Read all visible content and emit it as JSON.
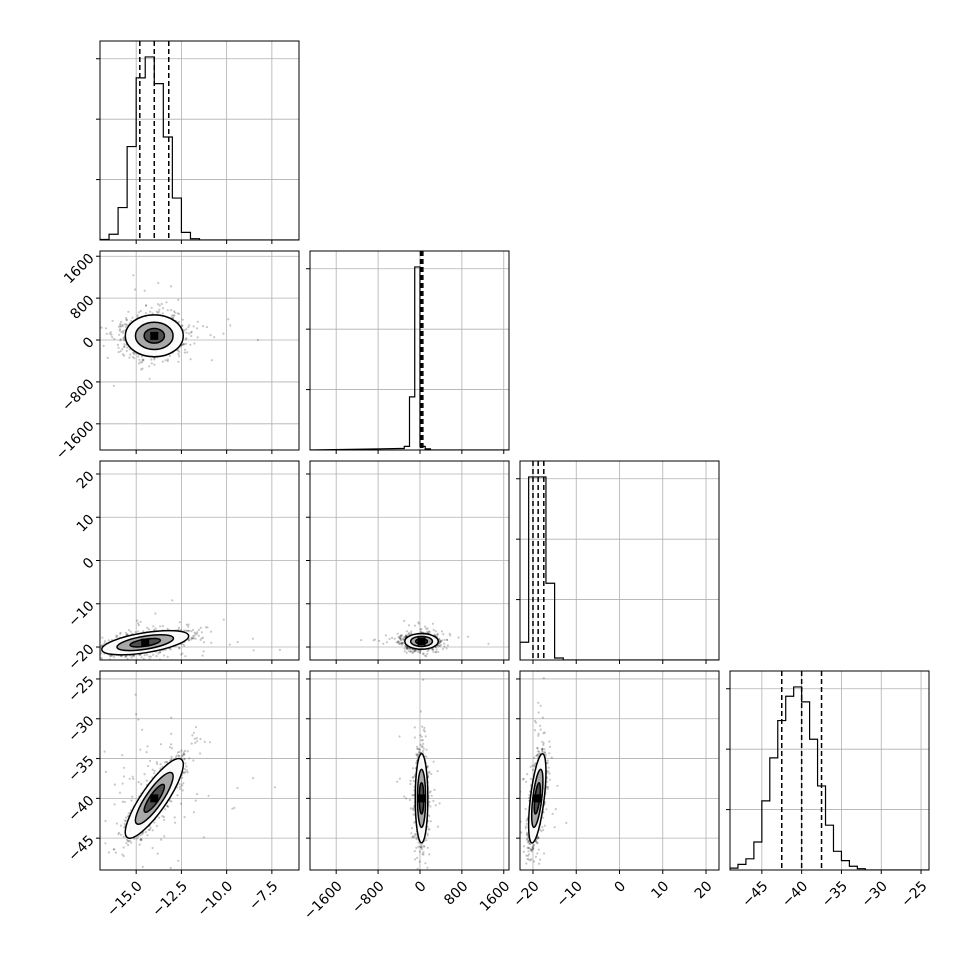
{
  "chart_data": {
    "type": "corner",
    "params": [
      {
        "xlim": [
          -17.0,
          -6.0
        ],
        "ticks": [
          -15.0,
          -12.5,
          -10.0,
          -7.5
        ],
        "tick_labels": [
          "−15.0",
          "−12.5",
          "−10.0",
          "−7.5"
        ],
        "quantiles": [
          -14.8,
          -14.0,
          -13.2
        ],
        "hist": {
          "edges": [
            -17.0,
            -16.5,
            -16.0,
            -15.5,
            -15.0,
            -14.5,
            -14.0,
            -13.5,
            -13.0,
            -12.5,
            -12.0,
            -11.5,
            -11.0
          ],
          "counts": [
            0.003,
            0.03,
            0.17,
            0.49,
            0.85,
            0.96,
            0.82,
            0.54,
            0.22,
            0.04,
            0.007,
            0.0
          ]
        }
      },
      {
        "xlim": [
          -2100,
          1700
        ],
        "ticks": [
          -1600,
          -800,
          0,
          800,
          1600
        ],
        "tick_labels": [
          "−1600",
          "−800",
          "0",
          "800",
          "1600"
        ],
        "quantiles": [
          10,
          30,
          55
        ],
        "hist": {
          "edges": [
            -400,
            -300,
            -200,
            -100,
            0,
            100,
            200,
            300
          ],
          "counts": [
            0.008,
            0.02,
            0.29,
            1.0,
            0.02,
            0.006,
            0.0
          ]
        }
      },
      {
        "xlim": [
          -23,
          23
        ],
        "ticks": [
          -20,
          -10,
          0,
          10,
          20
        ],
        "tick_labels": [
          "−20",
          "−10",
          "0",
          "10",
          "20"
        ],
        "quantiles": [
          -20.0,
          -18.8,
          -17.5
        ],
        "hist": {
          "edges": [
            -23,
            -21,
            -19,
            -17,
            -15,
            -13
          ],
          "counts": [
            0.09,
            0.93,
            0.93,
            0.39,
            0.01
          ]
        }
      },
      {
        "xlim": [
          -49,
          -24
        ],
        "ticks": [
          -45,
          -40,
          -35,
          -30,
          -25
        ],
        "tick_labels": [
          "−45",
          "−40",
          "−35",
          "−30",
          "−25"
        ],
        "quantiles": [
          -42.5,
          -40.0,
          -37.5
        ],
        "hist": {
          "edges": [
            -49,
            -48,
            -47,
            -46,
            -45,
            -44,
            -43,
            -42,
            -41,
            -40,
            -39,
            -38,
            -37,
            -36,
            -35,
            -34,
            -33,
            -32,
            -31
          ],
          "counts": [
            0.01,
            0.03,
            0.06,
            0.15,
            0.37,
            0.6,
            0.8,
            0.93,
            0.98,
            0.9,
            0.7,
            0.45,
            0.24,
            0.1,
            0.05,
            0.02,
            0.007,
            0.0
          ]
        }
      }
    ],
    "row_axes": [
      null,
      {
        "ylim": [
          -2100,
          1700
        ],
        "ticks": [
          -1600,
          -800,
          0,
          800,
          1600
        ],
        "tick_labels": [
          "−1600",
          "−800",
          "0",
          "800",
          "1600"
        ]
      },
      {
        "ylim": [
          -23,
          23
        ],
        "ticks": [
          -20,
          -10,
          0,
          10,
          20
        ],
        "tick_labels": [
          "−20",
          "−10",
          "0",
          "10",
          "20"
        ]
      },
      {
        "ylim": [
          -49,
          -24
        ],
        "ticks": [
          -45,
          -40,
          -35,
          -30,
          -25
        ],
        "tick_labels": [
          "−45",
          "−40",
          "−35",
          "−30",
          "−25"
        ]
      }
    ],
    "pairs": [
      {
        "row": 1,
        "col": 0,
        "mean": [
          -14.0,
          80
        ],
        "sd": [
          0.8,
          200
        ],
        "corr": 0.0
      },
      {
        "row": 2,
        "col": 0,
        "mean": [
          -14.5,
          -19.0
        ],
        "sd": [
          1.2,
          1.4
        ],
        "corr": 0.55
      },
      {
        "row": 2,
        "col": 1,
        "mean": [
          30,
          -18.7
        ],
        "sd": [
          160,
          0.9
        ],
        "corr": 0.0
      },
      {
        "row": 3,
        "col": 0,
        "mean": [
          -14.0,
          -40.0
        ],
        "sd": [
          0.8,
          2.5
        ],
        "corr": 0.85
      },
      {
        "row": 3,
        "col": 1,
        "mean": [
          30,
          -40.0
        ],
        "sd": [
          60,
          2.8
        ],
        "corr": 0.0
      },
      {
        "row": 3,
        "col": 2,
        "mean": [
          -19.0,
          -40.0
        ],
        "sd": [
          1.0,
          2.8
        ],
        "corr": 0.6
      }
    ],
    "colors": {
      "hist": "#000000",
      "scatter": "#000000",
      "grid": "#b0b0b0",
      "contour_fill_inner": "#404040",
      "contour_fill_mid": "#9a9a9a",
      "contour_fill_outer": "#ffffff"
    },
    "grid": true,
    "legend": "none",
    "title": "",
    "xlabel": "",
    "ylabel": ""
  }
}
